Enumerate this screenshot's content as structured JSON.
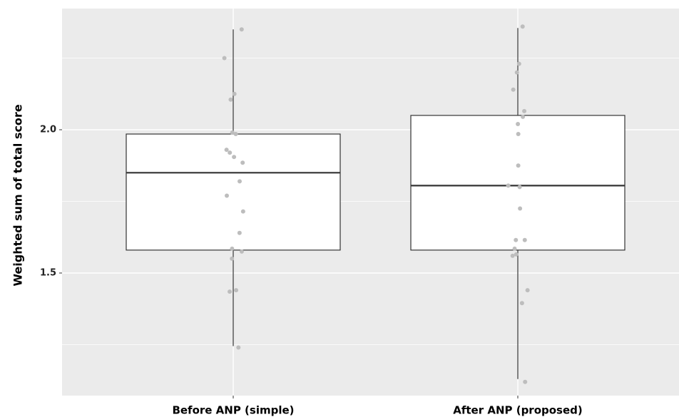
{
  "chart_data": {
    "type": "box",
    "title": "",
    "xlabel": "",
    "ylabel": "Weighted sum of total score",
    "y_ticks": [
      1.5,
      2.0
    ],
    "y_tick_labels": [
      "1.5",
      "2.0"
    ],
    "ylim": [
      1.07,
      2.42
    ],
    "grid": true,
    "legend": "none",
    "categories": [
      "Before ANP (simple)",
      "After ANP (proposed)"
    ],
    "boxes": [
      {
        "name": "Before ANP (simple)",
        "q1": 1.58,
        "median": 1.85,
        "q3": 1.985,
        "whisker_low": 1.245,
        "whisker_high": 2.35,
        "points": [
          2.35,
          2.25,
          2.125,
          2.105,
          1.99,
          1.985,
          1.93,
          1.92,
          1.905,
          1.885,
          1.82,
          1.77,
          1.715,
          1.64,
          1.585,
          1.575,
          1.55,
          1.44,
          1.435,
          1.24
        ]
      },
      {
        "name": "After ANP (proposed)",
        "q1": 1.58,
        "median": 1.805,
        "q3": 2.05,
        "whisker_low": 1.13,
        "whisker_high": 2.355,
        "points": [
          2.36,
          2.23,
          2.2,
          2.14,
          2.065,
          2.045,
          2.02,
          1.985,
          1.875,
          1.805,
          1.8,
          1.725,
          1.615,
          1.615,
          1.585,
          1.565,
          1.56,
          1.44,
          1.395,
          1.12
        ]
      }
    ],
    "colors": {
      "panel": "#ebebeb",
      "grid": "#ffffff",
      "box_fill": "#ffffff",
      "box_stroke": "#333333",
      "median": "#333333",
      "point": "#bdbdbd"
    }
  }
}
